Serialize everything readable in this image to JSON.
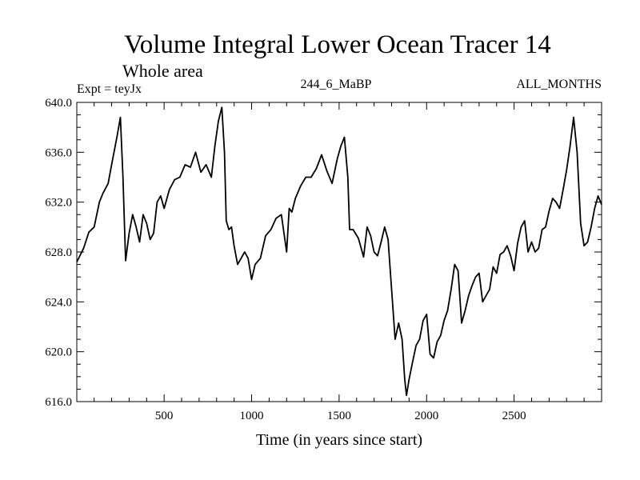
{
  "chart_data": {
    "type": "line",
    "title": "Volume Integral Lower Ocean Tracer 14",
    "subtitle": "Whole area",
    "experiment_label": "Expt = teyJx",
    "center_label": "244_6_MaBP",
    "right_label": "ALL_MONTHS",
    "xlabel": "Time (in years since start)",
    "ylabel": "",
    "xlim": [
      1,
      3000
    ],
    "ylim": [
      616.0,
      640.0
    ],
    "x_ticks": [
      500,
      1000,
      1500,
      2000,
      2500
    ],
    "x_tick_labels": [
      "500",
      "1000",
      "1500",
      "2000",
      "2500"
    ],
    "y_ticks": [
      616,
      620,
      624,
      628,
      632,
      636,
      640
    ],
    "y_tick_labels": [
      "616.0",
      "620.0",
      "624.0",
      "628.0",
      "632.0",
      "636.0",
      "640.0"
    ],
    "series": [
      {
        "name": "Tracer 14",
        "color": "#000000",
        "x": [
          1,
          40,
          70,
          100,
          130,
          150,
          180,
          200,
          230,
          250,
          265,
          280,
          300,
          320,
          340,
          360,
          380,
          400,
          420,
          440,
          460,
          480,
          500,
          530,
          560,
          590,
          620,
          650,
          680,
          710,
          740,
          770,
          790,
          810,
          830,
          845,
          855,
          870,
          885,
          900,
          920,
          940,
          960,
          980,
          1000,
          1020,
          1050,
          1080,
          1110,
          1140,
          1170,
          1200,
          1215,
          1230,
          1250,
          1280,
          1310,
          1340,
          1370,
          1400,
          1430,
          1460,
          1490,
          1510,
          1530,
          1550,
          1560,
          1580,
          1610,
          1640,
          1660,
          1680,
          1700,
          1720,
          1740,
          1760,
          1780,
          1800,
          1820,
          1840,
          1860,
          1875,
          1885,
          1900,
          1920,
          1940,
          1960,
          1980,
          2000,
          2020,
          2040,
          2060,
          2080,
          2100,
          2120,
          2140,
          2160,
          2180,
          2200,
          2220,
          2240,
          2260,
          2280,
          2300,
          2320,
          2340,
          2360,
          2380,
          2400,
          2420,
          2440,
          2460,
          2480,
          2500,
          2520,
          2540,
          2560,
          2580,
          2600,
          2620,
          2640,
          2660,
          2680,
          2700,
          2720,
          2740,
          2760,
          2780,
          2800,
          2820,
          2840,
          2860,
          2880,
          2900,
          2920,
          2940,
          2960,
          2980,
          3000
        ],
        "values": [
          627.2,
          628.3,
          629.6,
          630.0,
          632.0,
          632.7,
          633.5,
          635.0,
          637.2,
          638.8,
          634.0,
          627.3,
          629.5,
          631.0,
          630.0,
          628.8,
          631.0,
          630.3,
          629.0,
          629.5,
          632.0,
          632.5,
          631.5,
          633.0,
          633.8,
          634.0,
          635.0,
          634.8,
          636.0,
          634.4,
          635.0,
          634.0,
          636.5,
          638.5,
          639.6,
          636.0,
          630.5,
          629.8,
          630.0,
          628.5,
          627.0,
          627.5,
          628.0,
          627.5,
          625.8,
          627.0,
          627.5,
          629.3,
          629.8,
          630.7,
          631.0,
          628.0,
          631.5,
          631.2,
          632.3,
          633.3,
          634.0,
          634.0,
          634.7,
          635.8,
          634.5,
          633.5,
          635.5,
          636.5,
          637.2,
          634.0,
          629.8,
          629.8,
          629.1,
          627.6,
          630.0,
          629.3,
          628.0,
          627.7,
          628.8,
          630.0,
          629.0,
          625.0,
          621.0,
          622.3,
          621.0,
          617.8,
          616.5,
          617.8,
          619.2,
          620.5,
          621.0,
          622.5,
          623.0,
          619.8,
          619.5,
          620.8,
          621.3,
          622.5,
          623.3,
          625.0,
          627.0,
          626.5,
          622.3,
          623.3,
          624.5,
          625.3,
          626.0,
          626.3,
          624.0,
          624.5,
          625.0,
          626.8,
          626.3,
          627.8,
          628.0,
          628.5,
          627.7,
          626.5,
          628.7,
          630.0,
          630.5,
          628.0,
          628.8,
          628.0,
          628.3,
          629.8,
          630.0,
          631.3,
          632.3,
          632.0,
          631.5,
          633.0,
          634.6,
          636.5,
          638.8,
          636.0,
          630.3,
          628.5,
          628.8,
          630.0,
          631.5,
          632.5,
          631.8
        ]
      }
    ],
    "axes_box": true
  }
}
